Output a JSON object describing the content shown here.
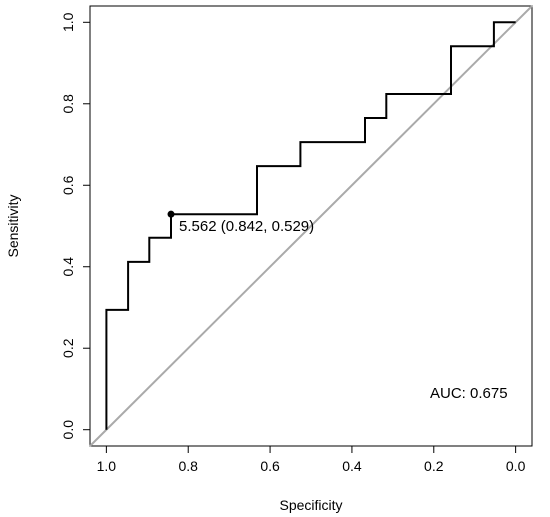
{
  "chart_data": {
    "type": "line",
    "title": "",
    "xlabel": "Specificity",
    "ylabel": "Sensitivity",
    "xlim": [
      1.04,
      -0.04
    ],
    "ylim": [
      -0.04,
      1.04
    ],
    "x_ticks": [
      1.0,
      0.8,
      0.6,
      0.4,
      0.2,
      0.0
    ],
    "x_tick_labels": [
      "1.0",
      "0.8",
      "0.6",
      "0.4",
      "0.2",
      "0.0"
    ],
    "y_ticks": [
      0.0,
      0.2,
      0.4,
      0.6,
      0.8,
      1.0
    ],
    "y_tick_labels": [
      "0.0",
      "0.2",
      "0.4",
      "0.6",
      "0.8",
      "1.0"
    ],
    "grid": false,
    "series": [
      {
        "type": "step",
        "color": "#000000",
        "x": [
          1.0,
          1.0,
          0.947,
          0.947,
          0.895,
          0.895,
          0.842,
          0.842,
          0.632,
          0.632,
          0.526,
          0.526,
          0.368,
          0.368,
          0.316,
          0.316,
          0.158,
          0.158,
          0.053,
          0.053,
          0.0
        ],
        "y": [
          0.0,
          0.294,
          0.294,
          0.412,
          0.412,
          0.471,
          0.471,
          0.529,
          0.529,
          0.647,
          0.647,
          0.706,
          0.706,
          0.765,
          0.765,
          0.824,
          0.824,
          0.941,
          0.941,
          1.0,
          1.0
        ]
      },
      {
        "type": "reference",
        "color": "#aaaaaa",
        "x": [
          1.04,
          -0.04
        ],
        "y": [
          -0.04,
          1.04
        ]
      }
    ],
    "highlight_point": {
      "x": 0.842,
      "y": 0.529,
      "label": "5.562 (0.842, 0.529)"
    },
    "auc_label": "AUC: 0.675"
  }
}
